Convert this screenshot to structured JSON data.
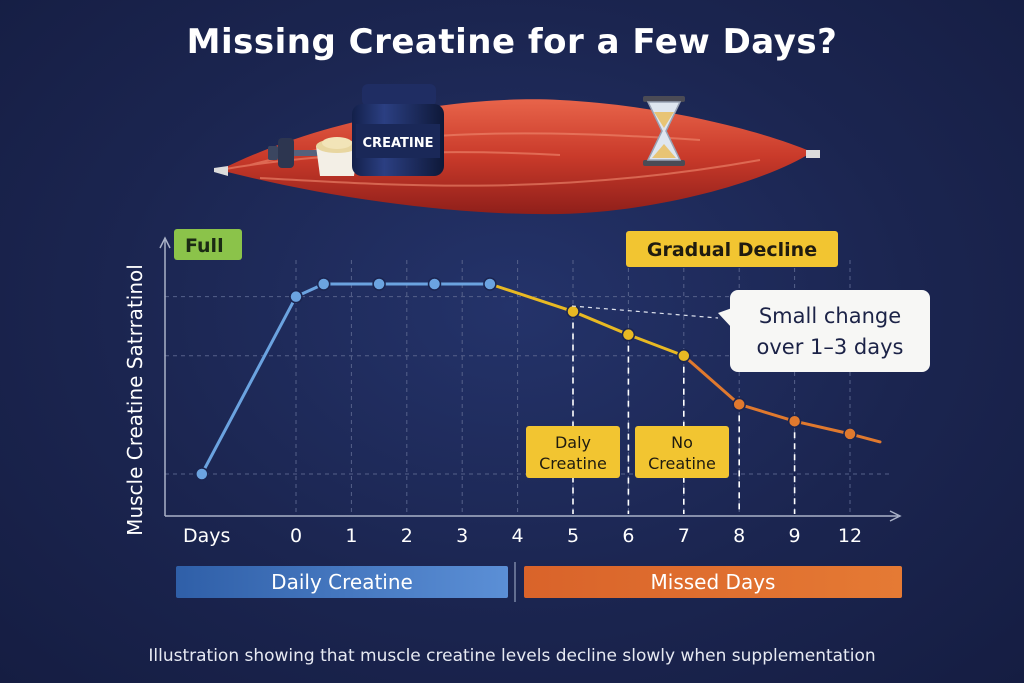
{
  "title": "Missing Creatine for a Few Days?",
  "caption": "Illustration showing that muscle creatine levels decline slowly when supplementation",
  "illustration": {
    "jar_label": "CREATINE",
    "icons": [
      "dumbbell-icon",
      "powder-scoop-icon",
      "creatine-jar-icon",
      "muscle-icon",
      "hourglass-icon"
    ]
  },
  "colors": {
    "background": "#1b2550",
    "daily": "#6ba3e0",
    "missed": "#e0792e",
    "full_line": "#8bc34a",
    "decline_line": "#e8b923",
    "label_yellow": "#f2c531"
  },
  "chart_data": {
    "type": "line",
    "ylabel": "Muscle Creatine Satrratinol",
    "x_axis_label": "Days",
    "x_ticks": [
      "0",
      "1",
      "2",
      "3",
      "4",
      "5",
      "6",
      "7",
      "8",
      "9",
      "12"
    ],
    "grid": "dashed",
    "reference_labels": {
      "full": "Full",
      "decline": "Gradual Decline"
    },
    "series": [
      {
        "segment": "daily",
        "points": [
          {
            "x": -1.7,
            "y": 0.0
          },
          {
            "x": 0.0,
            "y": 0.84
          },
          {
            "x": 0.5,
            "y": 0.9
          },
          {
            "x": 1.5,
            "y": 0.9
          },
          {
            "x": 2.5,
            "y": 0.9
          },
          {
            "x": 3.5,
            "y": 0.9
          }
        ]
      },
      {
        "segment": "missed",
        "points": [
          {
            "x": 3.5,
            "y": 0.9
          },
          {
            "x": 5,
            "y": 0.77
          },
          {
            "x": 6,
            "y": 0.66
          },
          {
            "x": 7,
            "y": 0.56
          },
          {
            "x": 8,
            "y": 0.33
          },
          {
            "x": 9,
            "y": 0.25
          },
          {
            "x": 10,
            "y": 0.19
          }
        ]
      }
    ],
    "annotations": {
      "callout": [
        "Small change",
        "over 1–3 days"
      ],
      "daily_label": [
        "Daly",
        "Creatine"
      ],
      "no_label": [
        "No",
        "Creatine"
      ]
    },
    "legend": {
      "daily": "Daily Creatine",
      "missed": "Missed Days"
    }
  }
}
